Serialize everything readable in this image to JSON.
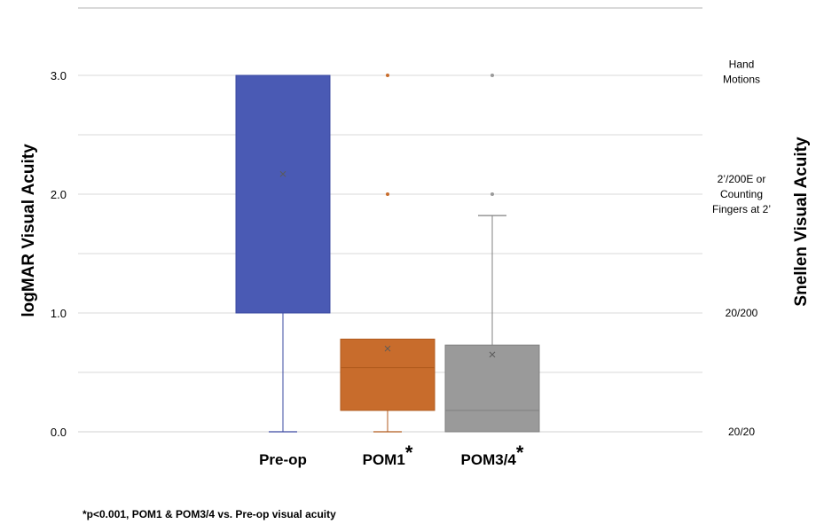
{
  "chart_data": {
    "type": "box",
    "ylabel": "logMAR Visual Acuity",
    "ylabel_right": "Snellen Visual Acuity",
    "ylim": [
      0,
      3.5
    ],
    "yticks": [
      "0.0",
      "1.0",
      "2.0",
      "3.0"
    ],
    "ytick_values": [
      0,
      1,
      2,
      3
    ],
    "grid": true,
    "right_axis_labels": [
      {
        "value": 3.0,
        "lines": [
          "Hand",
          "Motions"
        ]
      },
      {
        "value": 2.0,
        "lines": [
          "2’/200E or",
          "Counting",
          "Fingers at 2’"
        ]
      },
      {
        "value": 1.0,
        "lines": [
          "20/200"
        ]
      },
      {
        "value": 0.0,
        "lines": [
          "20/20"
        ]
      }
    ],
    "categories": [
      "Pre-op",
      "POM1",
      "POM3/4"
    ],
    "category_marks": [
      "",
      "*",
      "*"
    ],
    "boxes": [
      {
        "name": "Pre-op",
        "color": "#4a5ab4",
        "edge": "#3a48a0",
        "whisker_low": 0.0,
        "q1": 1.0,
        "median": 3.0,
        "q3": 3.0,
        "whisker_high": 3.0,
        "mean": 2.17,
        "outliers": []
      },
      {
        "name": "POM1",
        "color": "#c86c2c",
        "edge": "#b05a1c",
        "whisker_low": 0.0,
        "q1": 0.18,
        "median": 0.54,
        "q3": 0.78,
        "whisker_high": 0.78,
        "mean": 0.7,
        "outliers": [
          2.0,
          3.0
        ]
      },
      {
        "name": "POM3/4",
        "color": "#9a9a9a",
        "edge": "#808080",
        "whisker_low": 0.0,
        "q1": 0.0,
        "median": 0.18,
        "q3": 0.73,
        "whisker_high": 1.82,
        "mean": 0.65,
        "outliers": [
          2.0,
          3.0
        ]
      }
    ],
    "footnote": "*p<0.001, POM1 & POM3/4 vs. Pre-op visual acuity"
  }
}
